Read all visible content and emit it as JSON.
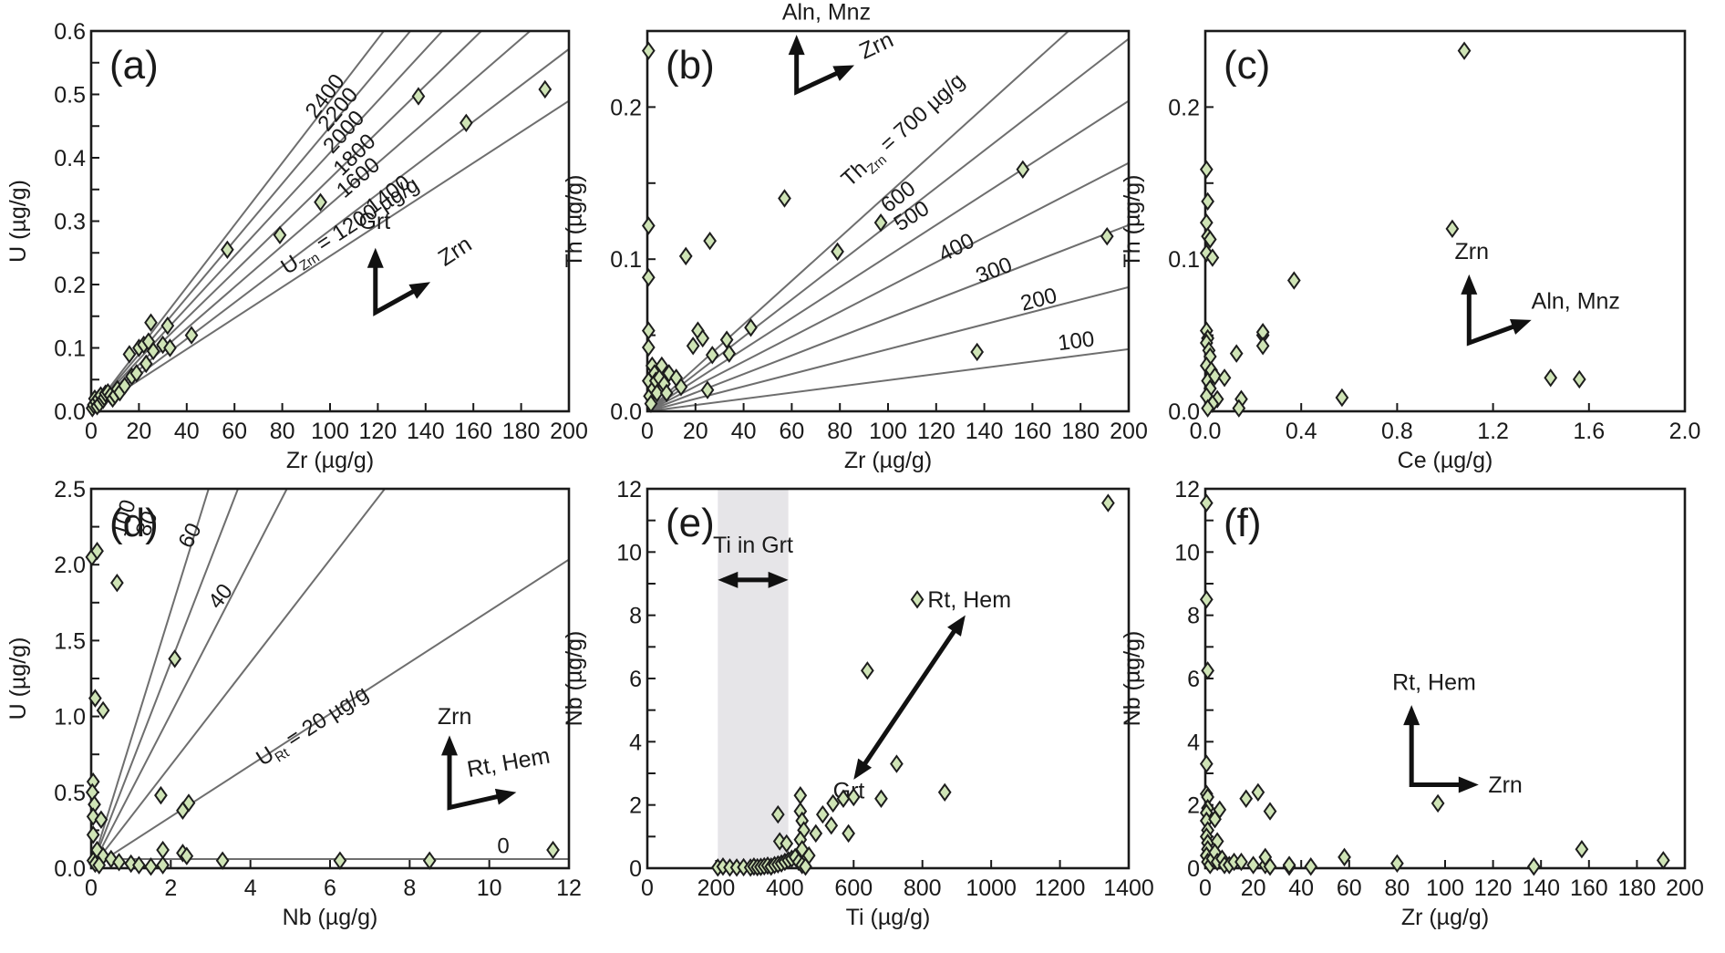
{
  "chart_data": [
    {
      "id": "a",
      "type": "scatter",
      "panel_label": "(a)",
      "xlabel": "Zr (µg/g)",
      "ylabel": "U (µg/g)",
      "xlim": [
        0,
        200
      ],
      "ylim": [
        0,
        0.6
      ],
      "xticks": [
        "0",
        "20",
        "40",
        "60",
        "80",
        "100",
        "120",
        "140",
        "160",
        "180",
        "200"
      ],
      "yticks": [
        "0.0",
        "0.1",
        "0.2",
        "0.3",
        "0.4",
        "0.5",
        "0.6"
      ],
      "reference_lines": {
        "quantity": "U in zircon",
        "divisor": 490000,
        "values": [
          1200,
          1400,
          1600,
          1800,
          2000,
          2200,
          2400
        ],
        "labels": [
          "U_Zrn = 1200 µg/g",
          "1400",
          "1600",
          "1800",
          "2000",
          "2200",
          "2400"
        ]
      },
      "annotations": [
        {
          "text": "Grt",
          "arrow": "up"
        },
        {
          "text": "Zrn",
          "arrow": "up-right"
        }
      ],
      "points": [
        [
          0.5,
          0.005
        ],
        [
          1,
          0.01
        ],
        [
          1.5,
          0.02
        ],
        [
          2,
          0.015
        ],
        [
          2.5,
          0.008
        ],
        [
          3,
          0.02
        ],
        [
          3.5,
          0.012
        ],
        [
          4,
          0.025
        ],
        [
          5,
          0.018
        ],
        [
          5.5,
          0.022
        ],
        [
          6,
          0.028
        ],
        [
          7,
          0.03
        ],
        [
          8,
          0.025
        ],
        [
          9,
          0.02
        ],
        [
          10,
          0.025
        ],
        [
          11,
          0.035
        ],
        [
          12,
          0.03
        ],
        [
          14,
          0.04
        ],
        [
          16,
          0.09
        ],
        [
          17,
          0.055
        ],
        [
          19,
          0.06
        ],
        [
          20,
          0.1
        ],
        [
          22,
          0.105
        ],
        [
          23,
          0.075
        ],
        [
          24,
          0.11
        ],
        [
          25,
          0.14
        ],
        [
          26,
          0.095
        ],
        [
          30,
          0.105
        ],
        [
          32,
          0.135
        ],
        [
          33,
          0.1
        ],
        [
          42,
          0.12
        ],
        [
          57,
          0.255
        ],
        [
          79,
          0.278
        ],
        [
          96,
          0.33
        ],
        [
          137,
          0.497
        ],
        [
          157,
          0.455
        ],
        [
          190,
          0.508
        ]
      ]
    },
    {
      "id": "b",
      "type": "scatter",
      "panel_label": "(b)",
      "xlabel": "Zr (µg/g)",
      "ylabel": "Th (µg/g)",
      "xlim": [
        0,
        200
      ],
      "ylim": [
        0,
        0.25
      ],
      "xticks": [
        "0",
        "20",
        "40",
        "60",
        "80",
        "100",
        "120",
        "140",
        "160",
        "180",
        "200"
      ],
      "yticks": [
        "0.0",
        "0.1",
        "0.2"
      ],
      "reference_lines": {
        "quantity": "Th in zircon",
        "divisor": 490000,
        "values": [
          100,
          200,
          300,
          400,
          500,
          600,
          700
        ],
        "labels": [
          "100",
          "200",
          "300",
          "400",
          "500",
          "600",
          "Th_Zrn = 700 µg/g"
        ]
      },
      "annotations": [
        {
          "text": "Aln, Mnz",
          "arrow": "up"
        },
        {
          "text": "Zrn",
          "arrow": "up-right"
        }
      ],
      "points": [
        [
          0.5,
          0.237
        ],
        [
          0.5,
          0.122
        ],
        [
          0.5,
          0.088
        ],
        [
          0.5,
          0.053
        ],
        [
          0.5,
          0.042
        ],
        [
          0.5,
          0.02
        ],
        [
          1,
          0.01
        ],
        [
          1.5,
          0.005
        ],
        [
          2,
          0.03
        ],
        [
          2.5,
          0.015
        ],
        [
          3,
          0.025
        ],
        [
          3.5,
          0.02
        ],
        [
          4,
          0.012
        ],
        [
          5,
          0.022
        ],
        [
          6,
          0.03
        ],
        [
          7,
          0.018
        ],
        [
          8,
          0.012
        ],
        [
          9,
          0.025
        ],
        [
          12,
          0.022
        ],
        [
          14,
          0.016
        ],
        [
          16,
          0.102
        ],
        [
          19,
          0.043
        ],
        [
          21,
          0.053
        ],
        [
          23,
          0.048
        ],
        [
          26,
          0.112
        ],
        [
          25,
          0.014
        ],
        [
          27,
          0.037
        ],
        [
          33,
          0.047
        ],
        [
          34,
          0.038
        ],
        [
          43,
          0.055
        ],
        [
          57,
          0.14
        ],
        [
          79,
          0.105
        ],
        [
          97,
          0.124
        ],
        [
          137,
          0.039
        ],
        [
          156,
          0.159
        ],
        [
          191,
          0.115
        ]
      ]
    },
    {
      "id": "c",
      "type": "scatter",
      "panel_label": "(c)",
      "xlabel": "Ce (µg/g)",
      "ylabel": "Th (µg/g)",
      "xlim": [
        0,
        2.0
      ],
      "ylim": [
        0,
        0.25
      ],
      "xticks": [
        "0.0",
        "0.4",
        "0.8",
        "1.2",
        "1.6",
        "2.0"
      ],
      "yticks": [
        "0.0",
        "0.1",
        "0.2"
      ],
      "annotations": [
        {
          "text": "Zrn",
          "arrow": "up"
        },
        {
          "text": "Aln, Mnz",
          "arrow": "up-right"
        }
      ],
      "points": [
        [
          0.005,
          0.159
        ],
        [
          0.01,
          0.138
        ],
        [
          0.005,
          0.124
        ],
        [
          0.01,
          0.115
        ],
        [
          0.02,
          0.113
        ],
        [
          0.005,
          0.104
        ],
        [
          0.03,
          0.101
        ],
        [
          0.005,
          0.053
        ],
        [
          0.01,
          0.048
        ],
        [
          0.005,
          0.045
        ],
        [
          0.015,
          0.04
        ],
        [
          0.02,
          0.036
        ],
        [
          0.005,
          0.03
        ],
        [
          0.025,
          0.027
        ],
        [
          0.01,
          0.02
        ],
        [
          0.04,
          0.023
        ],
        [
          0.02,
          0.015
        ],
        [
          0.005,
          0.01
        ],
        [
          0.05,
          0.008
        ],
        [
          0.03,
          0.005
        ],
        [
          0.01,
          0.002
        ],
        [
          0.08,
          0.022
        ],
        [
          0.13,
          0.038
        ],
        [
          0.15,
          0.008
        ],
        [
          0.14,
          0.002
        ],
        [
          0.24,
          0.05
        ],
        [
          0.24,
          0.052
        ],
        [
          0.24,
          0.043
        ],
        [
          0.37,
          0.086
        ],
        [
          0.57,
          0.009
        ],
        [
          1.03,
          0.12
        ],
        [
          1.08,
          0.237
        ],
        [
          1.44,
          0.022
        ],
        [
          1.56,
          0.021
        ]
      ]
    },
    {
      "id": "d",
      "type": "scatter",
      "panel_label": "(d)",
      "xlabel": "Nb (µg/g)",
      "ylabel": "U (µg/g)",
      "xlim": [
        0,
        12
      ],
      "ylim": [
        0,
        2.5
      ],
      "xticks": [
        "0",
        "2",
        "4",
        "6",
        "8",
        "10",
        "12"
      ],
      "yticks": [
        "0.0",
        "0.5",
        "1.0",
        "1.5",
        "2.0",
        "2.5"
      ],
      "reference_lines": {
        "quantity": "U in rutile",
        "divisor": 118,
        "values": [
          0,
          20,
          40,
          60,
          80,
          100
        ],
        "labels": [
          "0",
          "U_Rt = 20 µg/g",
          "40",
          "60",
          "80",
          "100"
        ]
      },
      "annotations": [
        {
          "text": "Zrn",
          "arrow": "up"
        },
        {
          "text": "Rt, Hem",
          "arrow": "up-right"
        }
      ],
      "points": [
        [
          0.02,
          2.05
        ],
        [
          0.15,
          2.09
        ],
        [
          0.65,
          1.88
        ],
        [
          0.1,
          1.12
        ],
        [
          0.3,
          1.04
        ],
        [
          0.05,
          0.57
        ],
        [
          0.03,
          0.5
        ],
        [
          0.08,
          0.42
        ],
        [
          0.05,
          0.34
        ],
        [
          0.25,
          0.32
        ],
        [
          0.05,
          0.22
        ],
        [
          0.15,
          0.12
        ],
        [
          0.3,
          0.08
        ],
        [
          0.5,
          0.06
        ],
        [
          0.7,
          0.04
        ],
        [
          1.0,
          0.03
        ],
        [
          1.2,
          0.02
        ],
        [
          1.5,
          0.01
        ],
        [
          0.05,
          0.05
        ],
        [
          0.1,
          0.03
        ],
        [
          0.2,
          0.02
        ],
        [
          1.75,
          0.48
        ],
        [
          2.3,
          0.38
        ],
        [
          2.45,
          0.43
        ],
        [
          2.1,
          1.38
        ],
        [
          1.8,
          0.12
        ],
        [
          2.3,
          0.1
        ],
        [
          2.4,
          0.08
        ],
        [
          1.8,
          0.02
        ],
        [
          3.3,
          0.05
        ],
        [
          6.25,
          0.05
        ],
        [
          8.5,
          0.05
        ],
        [
          11.6,
          0.12
        ]
      ]
    },
    {
      "id": "e",
      "type": "scatter",
      "panel_label": "(e)",
      "xlabel": "Ti (µg/g)",
      "ylabel": "Nb (µg/g)",
      "xlim": [
        0,
        1400
      ],
      "ylim": [
        0,
        12
      ],
      "xticks": [
        "0",
        "200",
        "400",
        "600",
        "800",
        "1000",
        "1200",
        "1400"
      ],
      "yticks": [
        "0",
        "2",
        "4",
        "6",
        "8",
        "10",
        "12"
      ],
      "shaded_range": {
        "label": "Ti in Grt",
        "x": [
          205,
          410
        ]
      },
      "annotations": [
        {
          "text": "Rt, Hem",
          "arrow": "double-ended diagonal"
        },
        {
          "text": "Grt",
          "arrow": "double-ended diagonal"
        }
      ],
      "points": [
        [
          205,
          0.02
        ],
        [
          220,
          0.05
        ],
        [
          240,
          0.02
        ],
        [
          260,
          0.02
        ],
        [
          280,
          0.03
        ],
        [
          300,
          0.02
        ],
        [
          310,
          0.05
        ],
        [
          320,
          0.03
        ],
        [
          330,
          0.04
        ],
        [
          340,
          0.06
        ],
        [
          350,
          0.08
        ],
        [
          360,
          0.05
        ],
        [
          370,
          0.1
        ],
        [
          380,
          0.12
        ],
        [
          390,
          0.15
        ],
        [
          400,
          0.2
        ],
        [
          410,
          0.25
        ],
        [
          420,
          0.3
        ],
        [
          430,
          0.35
        ],
        [
          440,
          0.2
        ],
        [
          450,
          0.1
        ],
        [
          460,
          0.05
        ],
        [
          380,
          1.7
        ],
        [
          385,
          0.85
        ],
        [
          405,
          0.78
        ],
        [
          445,
          2.3
        ],
        [
          445,
          1.8
        ],
        [
          450,
          1.5
        ],
        [
          455,
          1.2
        ],
        [
          445,
          0.9
        ],
        [
          450,
          0.6
        ],
        [
          470,
          0.4
        ],
        [
          490,
          1.1
        ],
        [
          510,
          1.7
        ],
        [
          535,
          1.35
        ],
        [
          540,
          2.05
        ],
        [
          570,
          2.2
        ],
        [
          585,
          1.1
        ],
        [
          600,
          2.25
        ],
        [
          640,
          6.25
        ],
        [
          680,
          2.2
        ],
        [
          725,
          3.3
        ],
        [
          785,
          8.5
        ],
        [
          865,
          2.4
        ],
        [
          1340,
          11.55
        ]
      ]
    },
    {
      "id": "f",
      "type": "scatter",
      "panel_label": "(f)",
      "xlabel": "Zr (µg/g)",
      "ylabel": "Nb (µg/g)",
      "xlim": [
        0,
        200
      ],
      "ylim": [
        0,
        12
      ],
      "xticks": [
        "0",
        "20",
        "40",
        "60",
        "80",
        "100",
        "120",
        "140",
        "160",
        "180",
        "200"
      ],
      "yticks": [
        "0",
        "2",
        "4",
        "6",
        "8",
        "10",
        "12"
      ],
      "annotations": [
        {
          "text": "Rt, Hem",
          "arrow": "up"
        },
        {
          "text": "Zrn",
          "arrow": "right"
        }
      ],
      "points": [
        [
          0.5,
          11.55
        ],
        [
          0.5,
          8.5
        ],
        [
          1,
          6.25
        ],
        [
          0.5,
          3.3
        ],
        [
          0.5,
          2.35
        ],
        [
          1,
          2.25
        ],
        [
          1,
          1.9
        ],
        [
          0.5,
          1.75
        ],
        [
          0.5,
          1.5
        ],
        [
          1,
          1.2
        ],
        [
          0.5,
          1.0
        ],
        [
          1,
          0.8
        ],
        [
          1,
          0.6
        ],
        [
          0.5,
          0.4
        ],
        [
          1,
          0.2
        ],
        [
          2,
          0.1
        ],
        [
          3,
          0.3
        ],
        [
          4,
          1.55
        ],
        [
          5,
          0.85
        ],
        [
          6,
          1.85
        ],
        [
          4,
          0.5
        ],
        [
          5,
          0.2
        ],
        [
          7,
          0.3
        ],
        [
          8,
          0.1
        ],
        [
          10,
          0.1
        ],
        [
          12,
          0.2
        ],
        [
          15,
          0.2
        ],
        [
          17,
          2.2
        ],
        [
          20,
          0.1
        ],
        [
          22,
          2.4
        ],
        [
          25,
          0.1
        ],
        [
          25,
          0.35
        ],
        [
          27,
          1.8
        ],
        [
          27,
          0.05
        ],
        [
          35,
          0.05
        ],
        [
          35,
          0.1
        ],
        [
          44,
          0.05
        ],
        [
          58,
          0.35
        ],
        [
          80,
          0.15
        ],
        [
          97,
          2.05
        ],
        [
          137,
          0.05
        ],
        [
          157,
          0.6
        ],
        [
          191,
          0.25
        ]
      ]
    }
  ]
}
